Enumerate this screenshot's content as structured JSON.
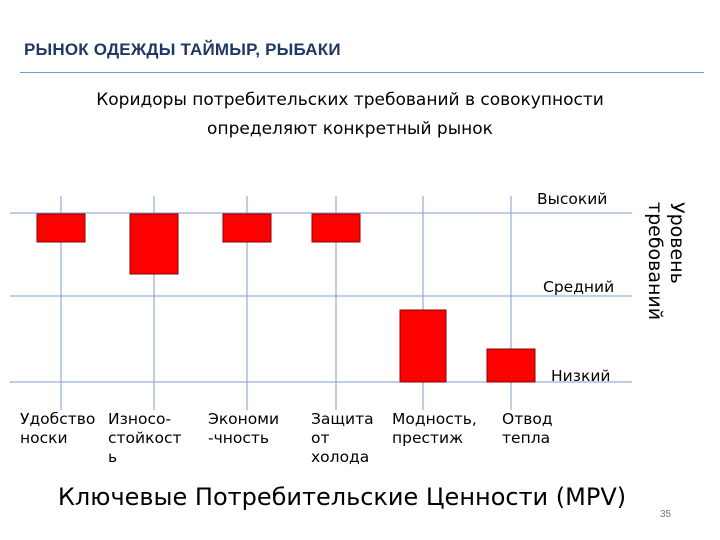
{
  "slide": {
    "title": "РЫНОК ОДЕЖДЫ  ТАЙМЫР, РЫБАКИ",
    "subtitle": "Коридоры потребительских требований  в совокупности определяют конкретный рынок",
    "footer_title": "Ключевые Потребительские Ценности (МРV)",
    "page_number": "35"
  },
  "diagram": {
    "axis_title": "Уровень\nтребований",
    "levels": [
      "Высокий",
      "Средний",
      "Низкий"
    ],
    "categories": [
      {
        "label": "Удобство\nноски",
        "corridor": [
          "Высокий",
          "Высокий"
        ]
      },
      {
        "label": "Износо-\nстойкост\nь",
        "corridor": [
          "Высокий",
          "Средний"
        ]
      },
      {
        "label": "Экономи\n-чность",
        "corridor": [
          "Высокий",
          "Высокий"
        ]
      },
      {
        "label": "Защита\nот\nхолода",
        "corridor": [
          "Высокий",
          "Высокий"
        ]
      },
      {
        "label": "Модность,\nпрестиж",
        "corridor": [
          "Средний",
          "Низкий"
        ]
      },
      {
        "label": "Отвод\nтепла",
        "corridor": [
          "Низкий",
          "Низкий"
        ]
      }
    ],
    "colors": {
      "bar_fill": "#ff0000",
      "bar_stroke": "#8b0000",
      "grid": "#7f9ec9"
    }
  }
}
